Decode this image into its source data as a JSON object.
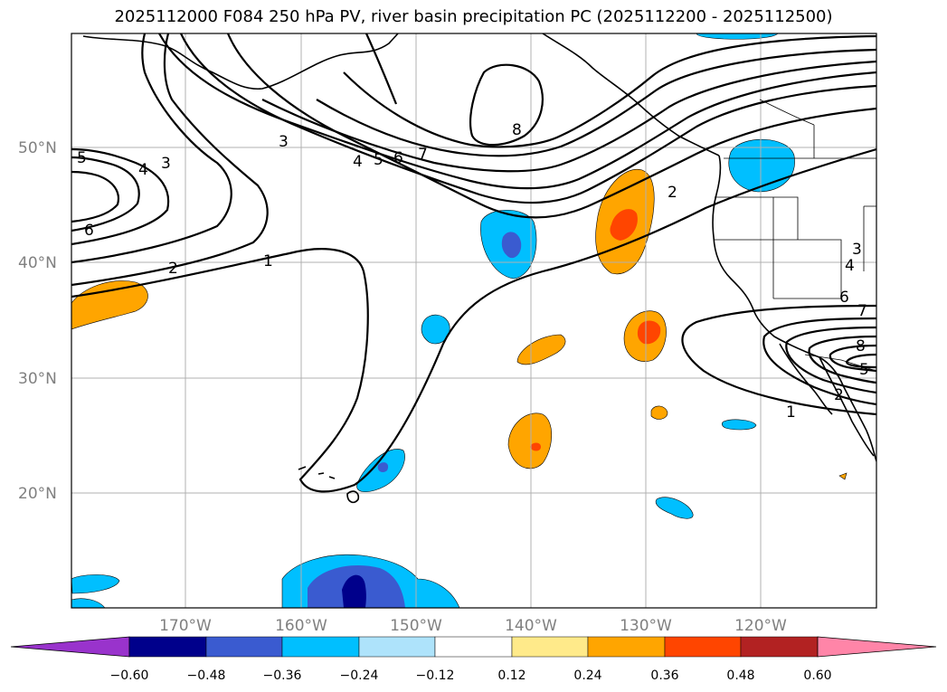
{
  "title": "2025112000 F084 250 hPa PV, river basin precipitation PC (2025112200 - 2025112500)",
  "lat_labels": [
    "50°N",
    "40°N",
    "30°N",
    "20°N"
  ],
  "lon_labels": [
    "170°W",
    "160°W",
    "150°W",
    "140°W",
    "130°W",
    "120°W"
  ],
  "pv_labels": [
    "1",
    "1",
    "2",
    "2",
    "2",
    "3",
    "3",
    "3",
    "4",
    "4",
    "4",
    "5",
    "5",
    "5",
    "6",
    "6",
    "6",
    "7",
    "7",
    "8",
    "8"
  ],
  "colorbar": {
    "ticks": [
      "−0.60",
      "−0.48",
      "−0.36",
      "−0.24",
      "−0.12",
      "0.12",
      "0.24",
      "0.36",
      "0.48",
      "0.60"
    ],
    "colors": [
      "#9933cc",
      "#00008b",
      "#3a5bd0",
      "#00bfff",
      "#aee3fb",
      "#ffffff",
      "#ffea8a",
      "#ffa500",
      "#ff4500",
      "#b22222",
      "#ff85a8"
    ]
  },
  "colors": {
    "frame": "#000000",
    "grid": "#b0b0b0",
    "coast": "#000000"
  }
}
